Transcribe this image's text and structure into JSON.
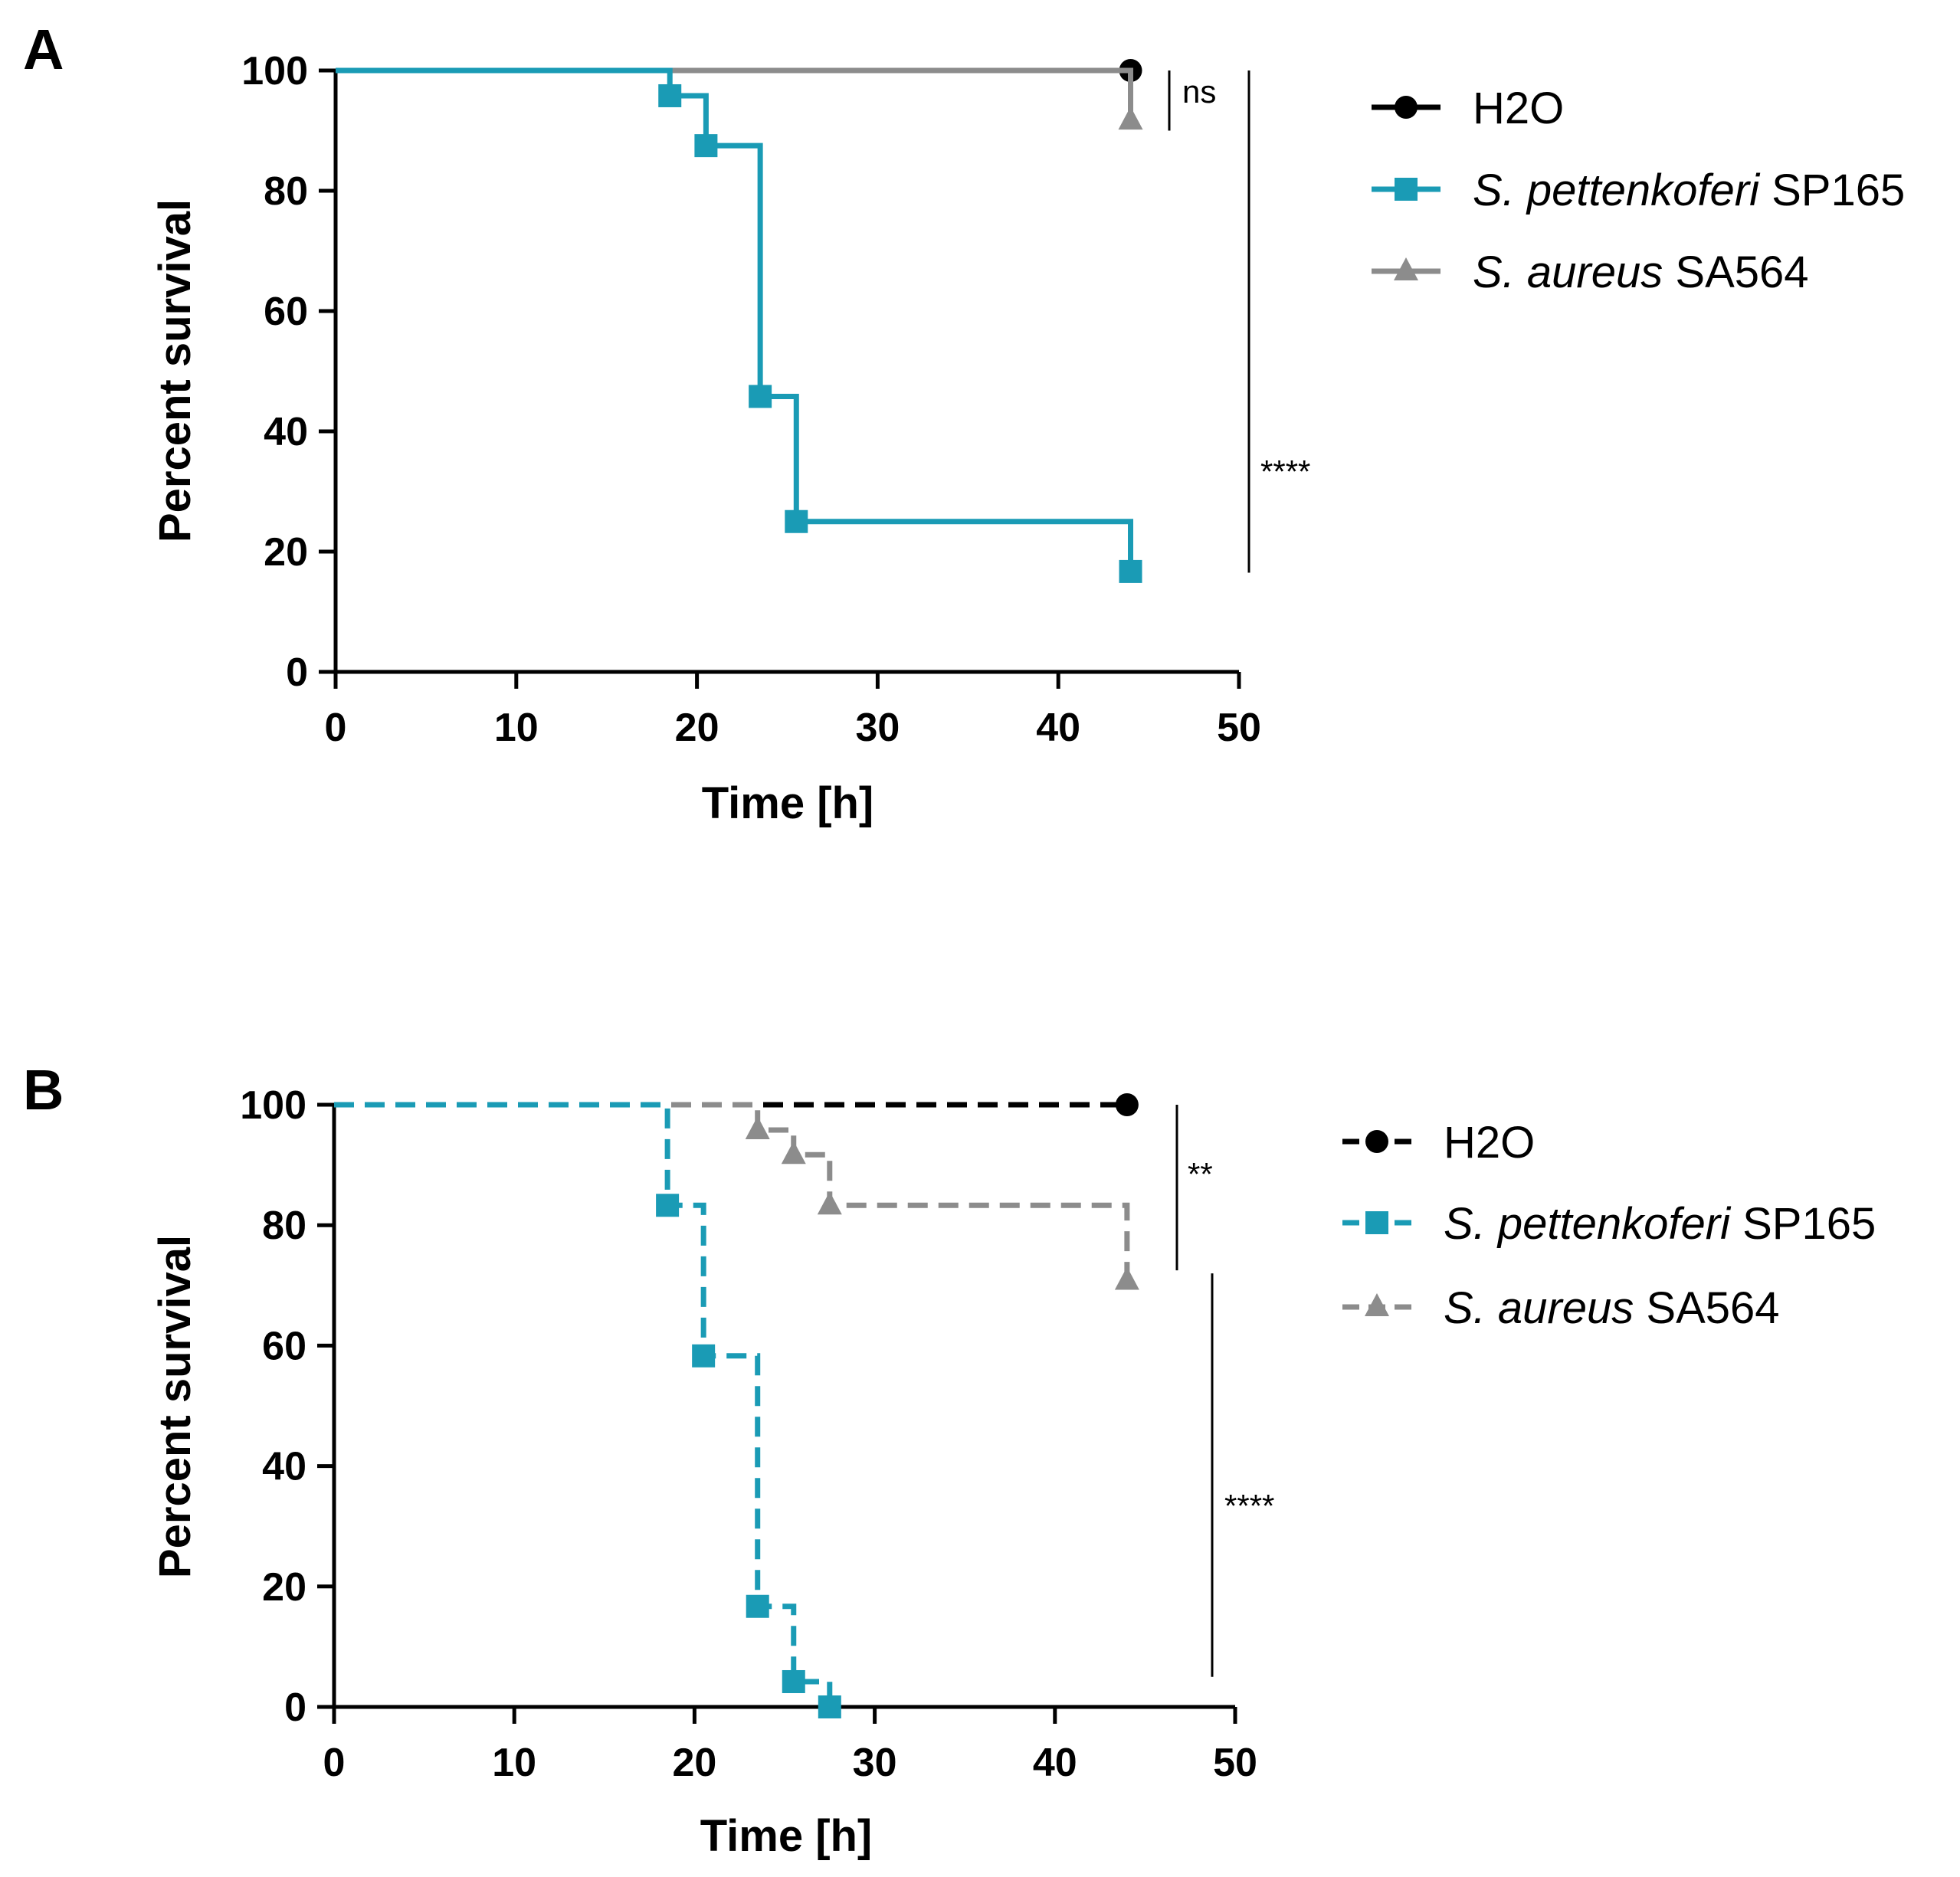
{
  "colors": {
    "h2o": "#000000",
    "pettenkoferi": "#1a9bb5",
    "aureus": "#8c8c8c"
  },
  "legend_entries": [
    {
      "italic": "",
      "plain": "H2O"
    },
    {
      "italic": "S. pettenkoferi",
      "plain": " SP165"
    },
    {
      "italic": "S. aureus",
      "plain": " SA564"
    }
  ],
  "chart_data": [
    {
      "type": "line",
      "subtype": "kaplan-meier",
      "panel_label": "A",
      "line_style": "solid",
      "xlabel": "Time [h]",
      "ylabel": "Percent survival",
      "xlim": [
        0,
        50
      ],
      "ylim": [
        0,
        100
      ],
      "xticks": [
        "0",
        "10",
        "20",
        "30",
        "40",
        "50"
      ],
      "yticks": [
        "0",
        "20",
        "40",
        "60",
        "80",
        "100"
      ],
      "series": [
        {
          "name": "H2O",
          "color_key": "h2o",
          "marker": "circle",
          "points": [
            [
              0,
              100
            ],
            [
              44,
              100
            ]
          ],
          "markers": [
            [
              44,
              100
            ]
          ]
        },
        {
          "name": "S. aureus SA564",
          "color_key": "aureus",
          "marker": "triangle",
          "points": [
            [
              0,
              100
            ],
            [
              44,
              100
            ],
            [
              44,
              91.7
            ]
          ],
          "markers": [
            [
              44,
              91.7
            ]
          ]
        },
        {
          "name": "S. pettenkoferi SP165",
          "color_key": "pettenkoferi",
          "marker": "square",
          "points": [
            [
              0,
              100
            ],
            [
              18.5,
              100
            ],
            [
              18.5,
              95.8
            ],
            [
              20.5,
              95.8
            ],
            [
              20.5,
              87.5
            ],
            [
              23.5,
              87.5
            ],
            [
              23.5,
              45.8
            ],
            [
              25.5,
              45.8
            ],
            [
              25.5,
              25
            ],
            [
              44,
              25
            ],
            [
              44,
              16.7
            ]
          ],
          "markers": [
            [
              18.5,
              95.8
            ],
            [
              20.5,
              87.5
            ],
            [
              23.5,
              45.8
            ],
            [
              25.5,
              25
            ],
            [
              44,
              16.7
            ]
          ]
        }
      ],
      "significance": [
        {
          "label": "ns",
          "y_from": 100,
          "y_to": 90
        },
        {
          "label": "****",
          "y_from": 100,
          "y_to": 16.5
        }
      ]
    },
    {
      "type": "line",
      "subtype": "kaplan-meier",
      "panel_label": "B",
      "line_style": "dashed",
      "xlabel": "Time [h]",
      "ylabel": "Percent survival",
      "xlim": [
        0,
        50
      ],
      "ylim": [
        0,
        100
      ],
      "xticks": [
        "0",
        "10",
        "20",
        "30",
        "40",
        "50"
      ],
      "yticks": [
        "0",
        "20",
        "40",
        "60",
        "80",
        "100"
      ],
      "series": [
        {
          "name": "H2O",
          "color_key": "h2o",
          "marker": "circle",
          "points": [
            [
              0,
              100
            ],
            [
              44,
              100
            ]
          ],
          "markers": [
            [
              44,
              100
            ]
          ]
        },
        {
          "name": "S. aureus SA564",
          "color_key": "aureus",
          "marker": "triangle",
          "points": [
            [
              0,
              100
            ],
            [
              23.5,
              100
            ],
            [
              23.5,
              95.8
            ],
            [
              25.5,
              95.8
            ],
            [
              25.5,
              91.7
            ],
            [
              27.5,
              91.7
            ],
            [
              27.5,
              83.3
            ],
            [
              44,
              83.3
            ],
            [
              44,
              70.8
            ]
          ],
          "markers": [
            [
              23.5,
              95.8
            ],
            [
              25.5,
              91.7
            ],
            [
              27.5,
              83.3
            ],
            [
              44,
              70.8
            ]
          ]
        },
        {
          "name": "S. pettenkoferi SP165",
          "color_key": "pettenkoferi",
          "marker": "square",
          "points": [
            [
              0,
              100
            ],
            [
              18.5,
              100
            ],
            [
              18.5,
              83.3
            ],
            [
              20.5,
              83.3
            ],
            [
              20.5,
              58.3
            ],
            [
              23.5,
              58.3
            ],
            [
              23.5,
              16.7
            ],
            [
              25.5,
              16.7
            ],
            [
              25.5,
              4.2
            ],
            [
              27.5,
              4.2
            ],
            [
              27.5,
              0
            ]
          ],
          "markers": [
            [
              18.5,
              83.3
            ],
            [
              20.5,
              58.3
            ],
            [
              23.5,
              16.7
            ],
            [
              25.5,
              4.2
            ],
            [
              27.5,
              0
            ]
          ]
        }
      ],
      "significance": [
        {
          "label": "**",
          "y_from": 100,
          "y_to": 72.5
        },
        {
          "label": "****",
          "y_from": 72,
          "y_to": 5
        }
      ]
    }
  ]
}
